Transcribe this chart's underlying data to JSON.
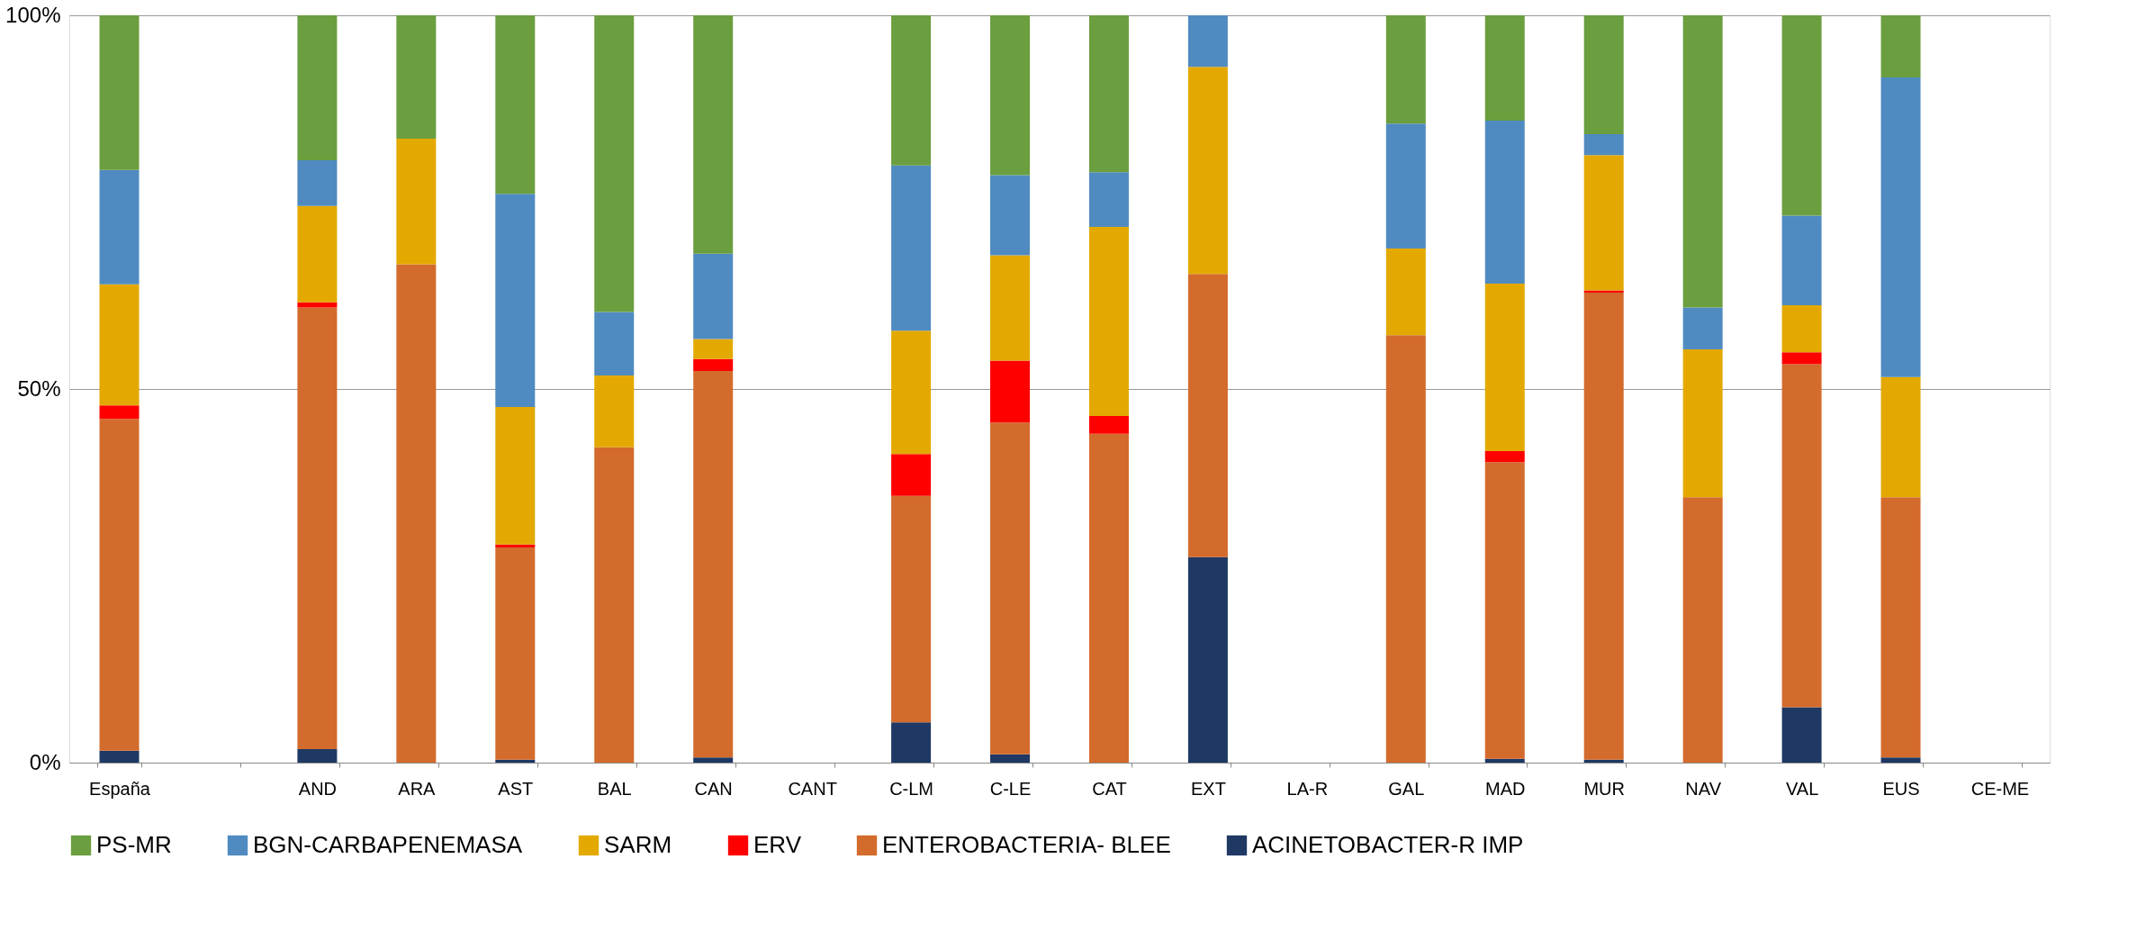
{
  "chart_data": {
    "type": "bar",
    "stacked": true,
    "categories": [
      "España",
      null,
      "AND",
      "ARA",
      "AST",
      "BAL",
      "CAN",
      "CANT",
      "C-LM",
      "C-LE",
      "CAT",
      "EXT",
      "LA-R",
      "GAL",
      "MAD",
      "MUR",
      "NAV",
      "VAL",
      "EUS",
      "CE-ME"
    ],
    "series": [
      {
        "name": "ACINETOBACTER-R IMP",
        "color": "#1f3864",
        "values": [
          1.6,
          null,
          1.8,
          0,
          0.4,
          0,
          0.7,
          null,
          5.4,
          1.1,
          0,
          27.5,
          null,
          0,
          0.5,
          0.4,
          0,
          7.4,
          0.7,
          null
        ]
      },
      {
        "name": "ENTEROBACTERIA- BLEE",
        "color": "#d36b2c",
        "values": [
          44.4,
          null,
          59.1,
          66.7,
          28.4,
          42.2,
          51.7,
          null,
          30.3,
          44.4,
          44.0,
          37.9,
          null,
          57.2,
          39.7,
          62.5,
          35.5,
          45.9,
          34.8,
          null
        ]
      },
      {
        "name": "ERV",
        "color": "#ff0000",
        "values": [
          1.8,
          null,
          0.7,
          0,
          0.4,
          0,
          1.6,
          null,
          5.6,
          8.3,
          2.4,
          0,
          null,
          0,
          1.5,
          0.3,
          0,
          1.6,
          0,
          null
        ]
      },
      {
        "name": "SARM",
        "color": "#e3a900",
        "values": [
          16.2,
          null,
          12.9,
          16.8,
          18.4,
          9.6,
          2.7,
          null,
          16.5,
          14.1,
          25.3,
          27.7,
          null,
          11.6,
          22.4,
          18.1,
          19.8,
          6.3,
          16.1,
          null
        ]
      },
      {
        "name": "BGN-CARBAPENEMASA",
        "color": "#4f8bc1",
        "values": [
          15.3,
          null,
          6.1,
          0,
          28.5,
          8.5,
          11.4,
          null,
          22.1,
          10.7,
          7.3,
          6.9,
          null,
          16.7,
          21.8,
          2.8,
          5.6,
          12.0,
          40.1,
          null
        ]
      },
      {
        "name": "PS-MR",
        "color": "#6b9e3f",
        "values": [
          20.7,
          null,
          19.4,
          16.5,
          23.9,
          39.7,
          31.9,
          null,
          20.1,
          21.4,
          21.0,
          0,
          null,
          14.5,
          14.1,
          15.9,
          39.1,
          26.8,
          8.3,
          null
        ]
      }
    ],
    "ylim": [
      0,
      100
    ],
    "yticks": [
      {
        "value": 0,
        "label": "0%"
      },
      {
        "value": 50,
        "label": "50%"
      },
      {
        "value": 100,
        "label": "100%"
      }
    ],
    "grid": "y",
    "legend": "bottom"
  }
}
